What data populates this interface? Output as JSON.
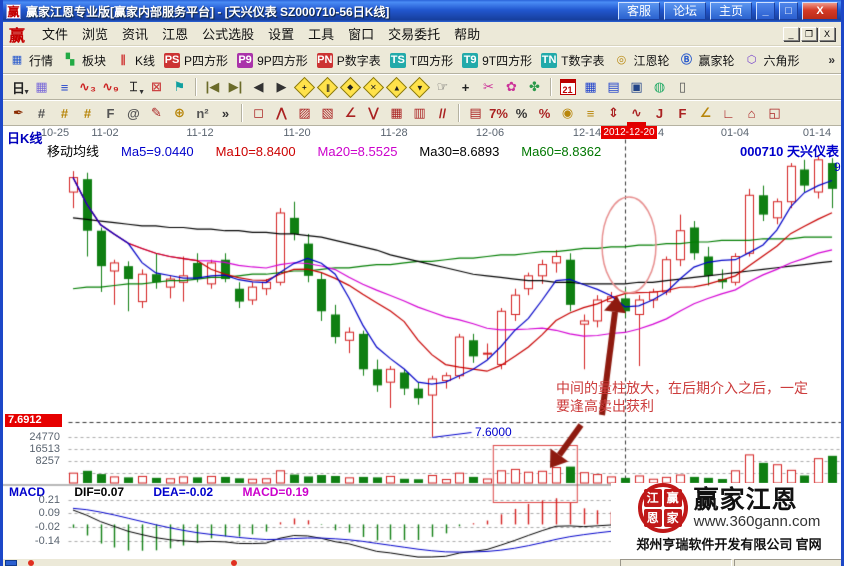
{
  "window": {
    "title": "赢家江恩专业版[赢家内部服务平台] - [天兴仪表  SZ000710-56日K线]",
    "app_logo": "赢",
    "titlebar_buttons": [
      "客服",
      "论坛",
      "主页"
    ],
    "controls": {
      "minimize": "_",
      "maximize": "□",
      "close": "X"
    },
    "mdi_controls": [
      "_",
      "❐",
      "X"
    ]
  },
  "menu": {
    "logo": "赢",
    "items": [
      "文件",
      "浏览",
      "资讯",
      "江恩",
      "公式选股",
      "设置",
      "工具",
      "窗口",
      "交易委托",
      "帮助"
    ]
  },
  "toolbar1": {
    "more": "»",
    "items": [
      {
        "name": "quotes",
        "label": "行情",
        "glyph": "▦",
        "fg": "#2255cc",
        "bg": ""
      },
      {
        "name": "sectors",
        "label": "板块",
        "glyph": "▚",
        "fg": "#22aa44",
        "bg": ""
      },
      {
        "name": "kline",
        "label": "K线",
        "glyph": "∥",
        "fg": "#cc2222",
        "bg": ""
      },
      {
        "name": "p-square",
        "label": "P四方形",
        "glyph": "PS",
        "fg": "#fff",
        "bg": "#cc3333"
      },
      {
        "name": "9p-square",
        "label": "9P四方形",
        "glyph": "P9",
        "fg": "#fff",
        "bg": "#aa33aa"
      },
      {
        "name": "p-number-table",
        "label": "P数字表",
        "glyph": "PN",
        "fg": "#fff",
        "bg": "#cc3333"
      },
      {
        "name": "t-square",
        "label": "T四方形",
        "glyph": "TS",
        "fg": "#fff",
        "bg": "#22aaaa"
      },
      {
        "name": "9t-square",
        "label": "9T四方形",
        "glyph": "T9",
        "fg": "#fff",
        "bg": "#22aaaa"
      },
      {
        "name": "t-number-table",
        "label": "T数字表",
        "glyph": "TN",
        "fg": "#fff",
        "bg": "#22aaaa"
      },
      {
        "name": "gann-wheel",
        "label": "江恩轮",
        "glyph": "◎",
        "fg": "#b8860b",
        "bg": ""
      },
      {
        "name": "winner-wheel",
        "label": "赢家轮",
        "glyph": "Ⓑ",
        "fg": "#2255cc",
        "bg": ""
      },
      {
        "name": "hexagon",
        "label": "六角形",
        "glyph": "⬡",
        "fg": "#7744cc",
        "bg": ""
      }
    ]
  },
  "toolbar2": {
    "items": [
      {
        "name": "kline-period-dropdown",
        "glyph": "日",
        "color": "#222",
        "caret": true
      },
      {
        "name": "pattern-search",
        "glyph": "▦",
        "color": "#7a6ad8"
      },
      {
        "name": "info-card",
        "glyph": "≡",
        "color": "#2244cc"
      },
      {
        "name": "wave-3",
        "glyph": "∿₃",
        "color": "#cc2222"
      },
      {
        "name": "wave-9",
        "glyph": "∿₉",
        "color": "#cc2222"
      },
      {
        "name": "bar-style-dropdown",
        "glyph": "⌶",
        "color": "#222",
        "caret": true
      },
      {
        "name": "gann-marker",
        "glyph": "⊠",
        "color": "#cc4444"
      },
      {
        "name": "flag-marker",
        "glyph": "⚑",
        "color": "#11a0a0"
      },
      {
        "sep": true
      },
      {
        "name": "first-bar",
        "glyph": "|◀",
        "color": "#6b6b2a"
      },
      {
        "name": "last-bar",
        "glyph": "▶|",
        "color": "#6b6b2a"
      },
      {
        "name": "prev-bar",
        "glyph": "◀",
        "color": "#333"
      },
      {
        "name": "next-bar",
        "glyph": "▶",
        "color": "#333"
      },
      {
        "name": "gann-diamond-cross",
        "mark": "+"
      },
      {
        "name": "gann-diamond-parallel",
        "mark": "∥"
      },
      {
        "name": "gann-diamond-solid",
        "mark": "◆"
      },
      {
        "name": "gann-diamond-x",
        "mark": "✕"
      },
      {
        "name": "gann-diamond-up",
        "mark": "▲"
      },
      {
        "name": "gann-diamond-down",
        "mark": "▼"
      },
      {
        "name": "drag-hand",
        "glyph": "☞",
        "color": "#555"
      },
      {
        "name": "crosshair",
        "glyph": "+",
        "color": "#222"
      },
      {
        "name": "measure-scissors",
        "glyph": "✂",
        "color": "#cc3399"
      },
      {
        "name": "flower-tool",
        "glyph": "✿",
        "color": "#cc3399"
      },
      {
        "name": "knot-tool",
        "glyph": "✤",
        "color": "#2a9a4a"
      },
      {
        "sep": true
      },
      {
        "name": "calendar",
        "cal": "21"
      },
      {
        "name": "calculator",
        "glyph": "▦",
        "color": "#2244cc"
      },
      {
        "name": "notebook",
        "glyph": "▤",
        "color": "#2244cc"
      },
      {
        "name": "save",
        "glyph": "▣",
        "color": "#224488"
      },
      {
        "name": "web-update",
        "glyph": "◍",
        "color": "#22aa66"
      },
      {
        "name": "mobile",
        "glyph": "▯",
        "color": "#555"
      }
    ]
  },
  "toolbar3": {
    "items": [
      {
        "name": "ink-pen-tool",
        "glyph": "✒",
        "color": "#8a2b00"
      },
      {
        "name": "grid-lines-tool",
        "glyph": "#",
        "color": "#555"
      },
      {
        "name": "gold-grid-a",
        "glyph": "#",
        "color": "#b8860b"
      },
      {
        "name": "gold-grid-b",
        "glyph": "#",
        "color": "#b8860b"
      },
      {
        "name": "fib-grid",
        "glyph": "F",
        "color": "#555"
      },
      {
        "name": "spiral-grid",
        "glyph": "@",
        "color": "#555"
      },
      {
        "name": "red-pen-tool",
        "glyph": "✎",
        "color": "#aa2222"
      },
      {
        "name": "circle-grid",
        "glyph": "⊕",
        "color": "#b8860b"
      },
      {
        "name": "n-square-grid",
        "glyph": "n²",
        "color": "#555"
      },
      {
        "name": "more-draw-tools",
        "glyph": "»",
        "color": "#333"
      },
      {
        "sep": true
      },
      {
        "name": "box-select-tool",
        "glyph": "◻",
        "color": "#aa2222"
      },
      {
        "name": "fan-lines-tool",
        "glyph": "⋀",
        "color": "#aa2222"
      },
      {
        "name": "shaded-box-a",
        "glyph": "▨",
        "color": "#aa2222"
      },
      {
        "name": "shaded-box-b",
        "glyph": "▧",
        "color": "#aa2222"
      },
      {
        "name": "angle-line-tool",
        "glyph": "∠",
        "color": "#aa2222"
      },
      {
        "name": "vee-line-tool",
        "glyph": "⋁",
        "color": "#aa2222"
      },
      {
        "name": "grid-box-a",
        "glyph": "▦",
        "color": "#aa2222"
      },
      {
        "name": "grid-box-b",
        "glyph": "▥",
        "color": "#aa2222"
      },
      {
        "name": "parallel-lines-tool",
        "glyph": "//",
        "color": "#aa2222"
      },
      {
        "sep": true
      },
      {
        "name": "ratio-table-tool",
        "glyph": "▤",
        "color": "#aa2222"
      },
      {
        "name": "seven-percent-tool",
        "glyph": "7%",
        "color": "#aa2222"
      },
      {
        "name": "percent-tool",
        "glyph": "%",
        "color": "#333"
      },
      {
        "name": "percent-line-tool",
        "glyph": "%",
        "color": "#aa2222"
      },
      {
        "name": "gold-circle-tool",
        "glyph": "◉",
        "color": "#b8860b"
      },
      {
        "name": "gold-line-tool",
        "glyph": "≡",
        "color": "#b8860b"
      },
      {
        "name": "price-scale-tool",
        "glyph": "⇕",
        "color": "#aa2222"
      },
      {
        "name": "wave-curve-tool",
        "glyph": "∿",
        "color": "#aa2222",
        "selected": true
      },
      {
        "name": "j-angle-tool",
        "glyph": "J",
        "color": "#aa2222"
      },
      {
        "name": "f-angle-tool",
        "glyph": "F",
        "color": "#aa2222"
      },
      {
        "name": "gold-angle-tool",
        "glyph": "∠",
        "color": "#b8860b"
      },
      {
        "name": "advance-angle-tool",
        "glyph": "∟",
        "color": "#aa2222"
      },
      {
        "name": "house-box-tool",
        "glyph": "⌂",
        "color": "#aa2222"
      },
      {
        "name": "quad-box-tool",
        "glyph": "◱",
        "color": "#aa2222"
      }
    ]
  },
  "chart_header": {
    "kline_label": "日K线",
    "ma_title": "移动均线",
    "ma_values": [
      {
        "label": "Ma5=9.0440",
        "color": "#0000cc"
      },
      {
        "label": "Ma10=8.8400",
        "color": "#cc0000"
      },
      {
        "label": "Ma20=8.5525",
        "color": "#cc00cc"
      },
      {
        "label": "Ma30=8.6893",
        "color": "#000000"
      },
      {
        "label": "Ma60=8.8362",
        "color": "#007700"
      }
    ],
    "stock_code": "000710",
    "stock_name": "天兴仪表"
  },
  "price_panel": {
    "price_marker": "7.6912",
    "low_callout": "7.6000",
    "right_edge_label": "9",
    "annotation_line1": "中间的量柱放大，在后期介入之后，一定",
    "annotation_line2": "要逢高卖出获利"
  },
  "volume_panel": {
    "scale": [
      "24770",
      "16513",
      "8257"
    ]
  },
  "macd_panel": {
    "label": "MACD",
    "dif": "DIF=0.07",
    "dea": "DEA=-0.02",
    "macd": "MACD=0.19",
    "scale": [
      "0.21",
      "0.09",
      "-0.02",
      "-0.14"
    ]
  },
  "logo": {
    "seal_chars": [
      "江",
      "赢",
      "恩",
      "家"
    ],
    "brand": "赢家江恩",
    "url": "www.360gann.com",
    "company": "郑州亨瑞软件开发有限公司 官网"
  },
  "chart_data": {
    "type": "candlestick",
    "panels": [
      "price",
      "volume",
      "macd"
    ],
    "title": "天兴仪表 SZ000710 56日K线",
    "x_tick_labels": [
      "10-25",
      "11-02",
      "11-12",
      "11-20",
      "11-28",
      "12-06",
      "12-14",
      "01-04",
      "01-14"
    ],
    "crosshair": {
      "date": "2012-12-20",
      "index": 40,
      "covered_label_residual": "4"
    },
    "price_axis": {
      "min": 7.55,
      "max": 9.35,
      "marker_price": 7.6912,
      "low_label_price": 7.6,
      "low_label_index": 26
    },
    "ma_latest": {
      "ma5": 9.044,
      "ma10": 8.84,
      "ma20": 8.5525,
      "ma30": 8.6893,
      "ma60": 8.8362
    },
    "candles": [
      [
        9.12,
        9.25,
        9.02,
        9.21
      ],
      [
        9.2,
        9.24,
        8.72,
        8.88
      ],
      [
        8.88,
        8.9,
        8.5,
        8.66
      ],
      [
        8.63,
        8.7,
        8.42,
        8.68
      ],
      [
        8.66,
        8.69,
        8.38,
        8.58
      ],
      [
        8.44,
        8.64,
        8.4,
        8.61
      ],
      [
        8.61,
        8.74,
        8.52,
        8.56
      ],
      [
        8.53,
        8.6,
        8.46,
        8.58
      ],
      [
        8.56,
        8.72,
        8.44,
        8.6
      ],
      [
        8.68,
        8.74,
        8.56,
        8.58
      ],
      [
        8.55,
        8.7,
        8.52,
        8.68
      ],
      [
        8.7,
        8.74,
        8.56,
        8.58
      ],
      [
        8.52,
        8.56,
        8.4,
        8.44
      ],
      [
        8.45,
        8.56,
        8.42,
        8.53
      ],
      [
        8.52,
        8.58,
        8.48,
        8.56
      ],
      [
        8.56,
        9.02,
        8.54,
        8.99
      ],
      [
        8.96,
        9.06,
        8.82,
        8.86
      ],
      [
        8.8,
        8.86,
        8.56,
        8.6
      ],
      [
        8.58,
        8.62,
        8.32,
        8.38
      ],
      [
        8.36,
        8.42,
        8.18,
        8.22
      ],
      [
        8.2,
        8.28,
        8.12,
        8.25
      ],
      [
        8.24,
        8.26,
        7.98,
        8.02
      ],
      [
        8.02,
        8.08,
        7.88,
        7.92
      ],
      [
        7.94,
        8.04,
        7.78,
        8.02
      ],
      [
        8.0,
        8.02,
        7.86,
        7.9
      ],
      [
        7.9,
        7.94,
        7.8,
        7.84
      ],
      [
        7.86,
        7.98,
        7.6,
        7.96
      ],
      [
        7.95,
        8.0,
        7.9,
        7.98
      ],
      [
        7.98,
        8.24,
        7.96,
        8.22
      ],
      [
        8.2,
        8.24,
        8.06,
        8.1
      ],
      [
        8.12,
        8.18,
        8.08,
        8.12
      ],
      [
        8.05,
        8.4,
        8.02,
        8.38
      ],
      [
        8.36,
        8.52,
        8.32,
        8.48
      ],
      [
        8.52,
        8.62,
        8.48,
        8.6
      ],
      [
        8.6,
        8.7,
        8.55,
        8.67
      ],
      [
        8.68,
        8.76,
        8.62,
        8.72
      ],
      [
        8.7,
        8.74,
        8.38,
        8.42
      ],
      [
        8.3,
        8.36,
        8.02,
        8.32
      ],
      [
        8.32,
        8.48,
        8.28,
        8.45
      ],
      [
        8.44,
        8.5,
        8.38,
        8.47
      ],
      [
        8.46,
        8.52,
        8.34,
        8.38
      ],
      [
        8.36,
        8.48,
        8.04,
        8.45
      ],
      [
        8.45,
        8.52,
        8.4,
        8.5
      ],
      [
        8.5,
        8.72,
        8.48,
        8.7
      ],
      [
        8.7,
        8.98,
        8.66,
        8.88
      ],
      [
        8.9,
        8.94,
        8.7,
        8.74
      ],
      [
        8.72,
        8.78,
        8.54,
        8.6
      ],
      [
        8.58,
        8.64,
        8.52,
        8.56
      ],
      [
        8.56,
        8.74,
        8.54,
        8.72
      ],
      [
        8.74,
        9.14,
        8.72,
        9.1
      ],
      [
        9.1,
        9.16,
        8.94,
        8.98
      ],
      [
        8.96,
        9.08,
        8.92,
        9.06
      ],
      [
        9.06,
        9.3,
        9.02,
        9.28
      ],
      [
        9.26,
        9.32,
        9.12,
        9.16
      ],
      [
        9.12,
        9.35,
        9.08,
        9.32
      ],
      [
        9.3,
        9.33,
        9.02,
        9.14
      ]
    ],
    "volumes": [
      4200,
      5200,
      3800,
      2600,
      2400,
      2800,
      2200,
      1800,
      2600,
      2400,
      2800,
      2600,
      2000,
      1600,
      1800,
      5200,
      3600,
      2800,
      3400,
      3000,
      2200,
      2600,
      2400,
      2800,
      1800,
      1600,
      3200,
      1500,
      4200,
      2600,
      1700,
      5200,
      5800,
      4600,
      5000,
      6600,
      7000,
      4400,
      3600,
      2600,
      2200,
      3000,
      1600,
      2400,
      3400,
      2600,
      2200,
      1700,
      5200,
      12000,
      8600,
      7800,
      5400,
      3200,
      10400,
      11600
    ],
    "volume_axis_max": 24770,
    "volume_scale_ticks": [
      24770,
      16513,
      8257
    ],
    "ma30": [
      8.96,
      8.95,
      8.94,
      8.93,
      8.92,
      8.91,
      8.91,
      8.9,
      8.9,
      8.89,
      8.89,
      8.88,
      8.88,
      8.87,
      8.87,
      8.86,
      8.86,
      8.85,
      8.84,
      8.82,
      8.8,
      8.78,
      8.76,
      8.73,
      8.71,
      8.69,
      8.67,
      8.65,
      8.63,
      8.61,
      8.6,
      8.59,
      8.58,
      8.57,
      8.57,
      8.56,
      8.56,
      8.55,
      8.55,
      8.55,
      8.55,
      8.56,
      8.56,
      8.57,
      8.58,
      8.59,
      8.6,
      8.61,
      8.62,
      8.63,
      8.64,
      8.65,
      8.66,
      8.67,
      8.68,
      8.69
    ],
    "ma60": [
      8.52,
      8.53,
      8.53,
      8.54,
      8.55,
      8.55,
      8.56,
      8.57,
      8.57,
      8.58,
      8.59,
      8.59,
      8.6,
      8.61,
      8.61,
      8.62,
      8.63,
      8.63,
      8.64,
      8.65,
      8.65,
      8.66,
      8.67,
      8.67,
      8.68,
      8.69,
      8.69,
      8.7,
      8.71,
      8.71,
      8.72,
      8.73,
      8.73,
      8.74,
      8.75,
      8.75,
      8.76,
      8.77,
      8.77,
      8.78,
      8.78,
      8.79,
      8.79,
      8.8,
      8.8,
      8.81,
      8.81,
      8.82,
      8.82,
      8.82,
      8.83,
      8.83,
      8.83,
      8.84,
      8.84,
      8.84
    ],
    "macd": {
      "dif_latest": 0.07,
      "dea_latest": -0.02,
      "macd_latest": 0.19,
      "scale_ticks": [
        0.21,
        0.09,
        -0.02,
        -0.14
      ]
    },
    "annotations": {
      "ellipse_highlight": {
        "center_index": 40,
        "note": "circle around candles at 2012-12-20"
      },
      "volume_highlight_rect": {
        "from_index": 31,
        "to_index": 36
      },
      "arrow_to_ellipse": "up-arrow from annotation text to circled candles",
      "arrow_to_volume": "down-arrow into highlighted volume bars"
    }
  }
}
